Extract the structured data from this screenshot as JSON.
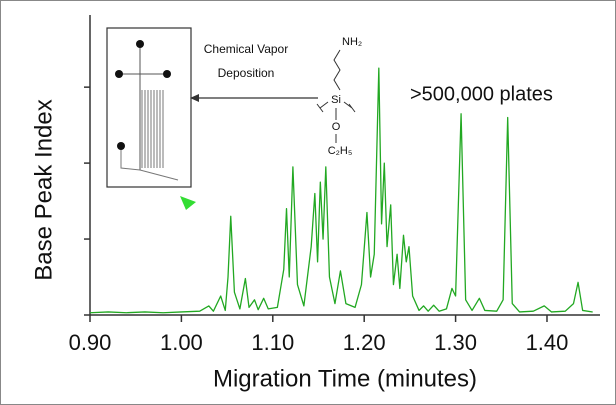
{
  "chart_data": {
    "type": "line",
    "xlabel": "Migration Time (minutes)",
    "ylabel": "Base Peak Index",
    "annotation": ">500,000 plates",
    "inset": {
      "caption_lines": [
        "Chemical Vapor",
        "Deposition"
      ],
      "structure": {
        "amine": "NH₂",
        "silicon": "Si",
        "oxygen": "O",
        "ethyl": "C₂H₅"
      }
    },
    "color": "#22a822",
    "xlim": [
      0.9,
      1.458
    ],
    "ylim": [
      0,
      3.95
    ],
    "xticks": [
      {
        "value": 0.9,
        "label": "0.90"
      },
      {
        "value": 1.0,
        "label": "1.00"
      },
      {
        "value": 1.1,
        "label": "1.10"
      },
      {
        "value": 1.2,
        "label": "1.20"
      },
      {
        "value": 1.3,
        "label": "1.30"
      },
      {
        "value": 1.4,
        "label": "1.40"
      }
    ],
    "yticks": [
      0,
      1,
      2,
      3
    ],
    "x": [
      0.9,
      0.92,
      0.94,
      0.96,
      0.98,
      1.0,
      1.02,
      1.03,
      1.035,
      1.043,
      1.048,
      1.051,
      1.054,
      1.058,
      1.064,
      1.07,
      1.074,
      1.08,
      1.084,
      1.09,
      1.095,
      1.105,
      1.112,
      1.115,
      1.118,
      1.122,
      1.127,
      1.134,
      1.142,
      1.146,
      1.149,
      1.152,
      1.155,
      1.158,
      1.162,
      1.168,
      1.174,
      1.18,
      1.19,
      1.197,
      1.203,
      1.207,
      1.211,
      1.216,
      1.219,
      1.222,
      1.225,
      1.229,
      1.232,
      1.236,
      1.239,
      1.243,
      1.246,
      1.249,
      1.253,
      1.26,
      1.265,
      1.27,
      1.276,
      1.282,
      1.29,
      1.296,
      1.3,
      1.306,
      1.311,
      1.318,
      1.326,
      1.332,
      1.345,
      1.352,
      1.357,
      1.362,
      1.37,
      1.385,
      1.397,
      1.405,
      1.42,
      1.429,
      1.434,
      1.439,
      1.45
    ],
    "values": [
      0.03,
      0.04,
      0.03,
      0.04,
      0.03,
      0.04,
      0.05,
      0.12,
      0.05,
      0.25,
      0.06,
      0.5,
      1.3,
      0.3,
      0.08,
      0.48,
      0.1,
      0.2,
      0.07,
      0.22,
      0.08,
      0.1,
      0.6,
      1.4,
      0.5,
      1.95,
      0.4,
      0.12,
      0.9,
      1.6,
      0.7,
      1.75,
      1.0,
      1.95,
      0.5,
      0.15,
      0.58,
      0.15,
      0.1,
      0.4,
      1.35,
      0.5,
      0.8,
      3.25,
      1.2,
      2.0,
      0.9,
      1.45,
      0.4,
      0.8,
      0.35,
      1.05,
      0.7,
      0.9,
      0.25,
      0.06,
      0.12,
      0.05,
      0.13,
      0.05,
      0.08,
      0.35,
      0.25,
      2.65,
      0.2,
      0.06,
      0.22,
      0.06,
      0.05,
      0.2,
      2.6,
      0.15,
      0.04,
      0.05,
      0.12,
      0.04,
      0.05,
      0.15,
      0.43,
      0.06,
      0.04
    ]
  }
}
